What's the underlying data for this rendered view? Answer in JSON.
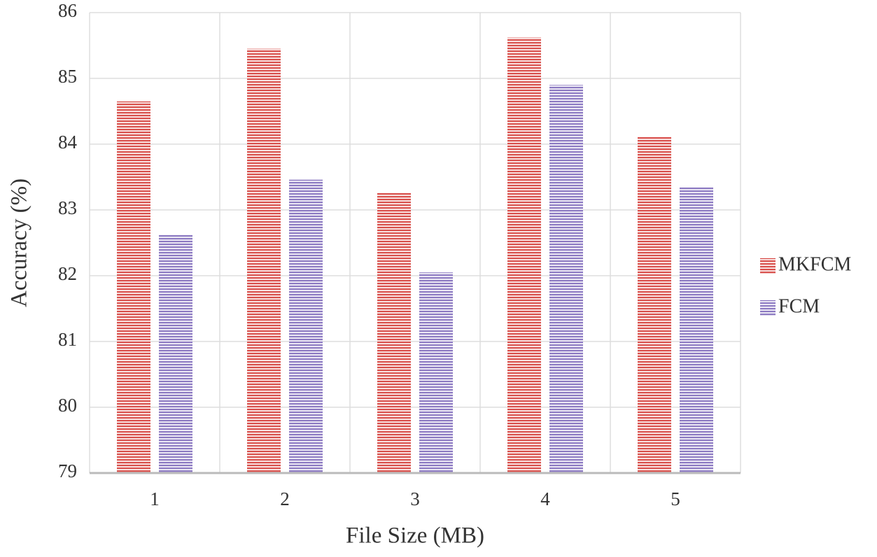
{
  "chart_data": {
    "type": "bar",
    "x_label": "File Size (MB)",
    "y_label": "Accuracy (%)",
    "categories": [
      "1",
      "2",
      "3",
      "4",
      "5"
    ],
    "series": [
      {
        "name": "MKFCM",
        "color": "#d9534f",
        "values": [
          84.65,
          85.45,
          83.26,
          85.62,
          84.12
        ]
      },
      {
        "name": "FCM",
        "color": "#8e7cc3",
        "values": [
          82.62,
          83.46,
          82.05,
          84.9,
          83.35
        ]
      }
    ],
    "ylim": [
      79,
      86
    ],
    "yticks": [
      79,
      80,
      81,
      82,
      83,
      84,
      85,
      86
    ],
    "grid": true,
    "legend": "right"
  }
}
